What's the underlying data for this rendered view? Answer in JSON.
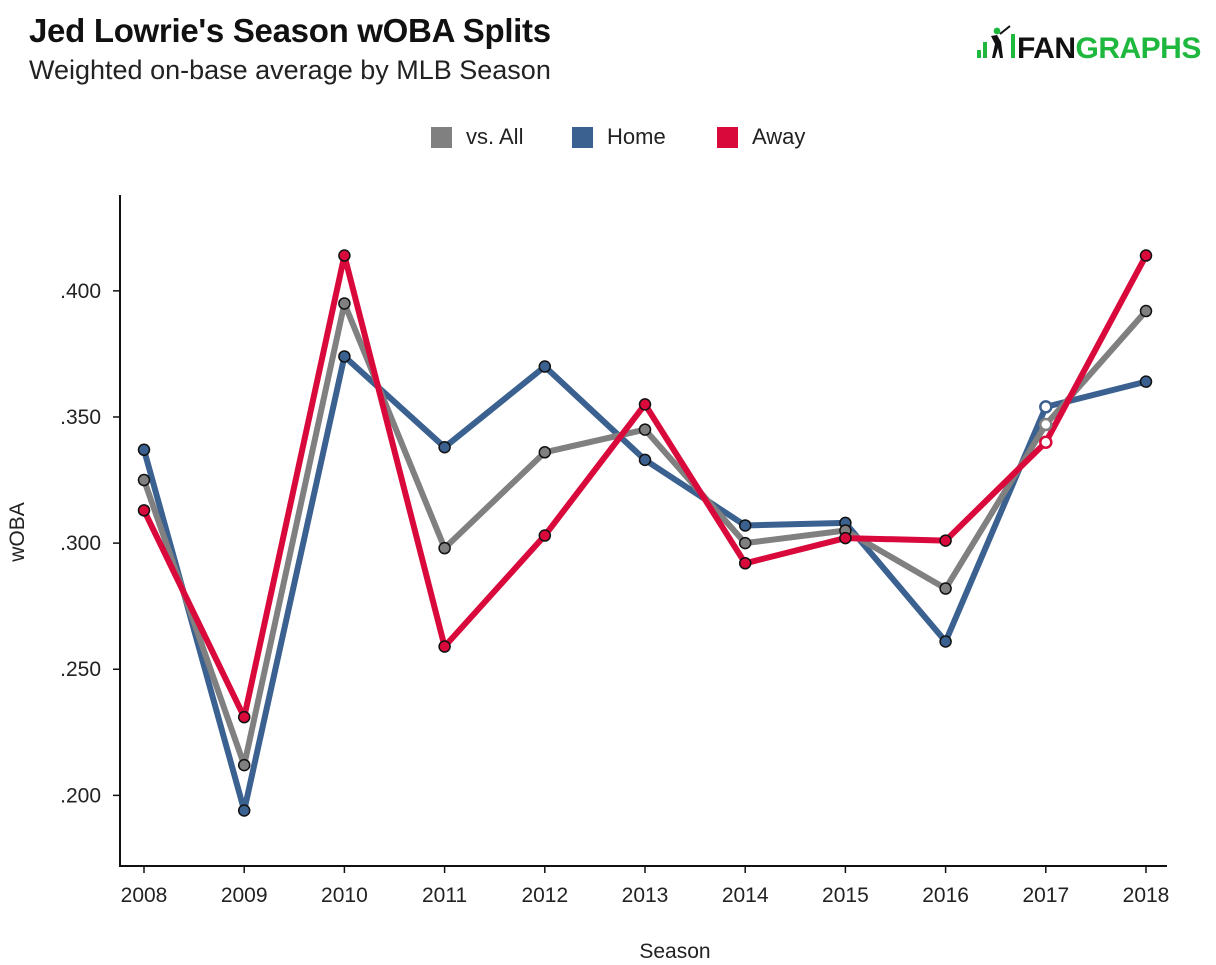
{
  "header": {
    "title": "Jed Lowrie's Season wOBA Splits",
    "subtitle": "Weighted on-base average by MLB Season",
    "logo_text": "FANGRAPHS"
  },
  "colors": {
    "all": "#808080",
    "home": "#3a6190",
    "away": "#d9093c",
    "brand_green": "#1fb83e"
  },
  "chart_data": {
    "type": "line",
    "xlabel": "Season",
    "ylabel": "wOBA",
    "x": [
      2008,
      2009,
      2010,
      2011,
      2012,
      2013,
      2014,
      2015,
      2016,
      2017,
      2018
    ],
    "ylim": [
      0.172,
      0.438
    ],
    "yticks": [
      0.2,
      0.25,
      0.3,
      0.35,
      0.4
    ],
    "ytick_labels": [
      ".200",
      ".250",
      ".300",
      ".350",
      ".400"
    ],
    "legend_position": "top-center",
    "grid": false,
    "series": [
      {
        "name": "vs. All",
        "key": "all",
        "values": [
          0.325,
          0.212,
          0.395,
          0.298,
          0.336,
          0.345,
          0.3,
          0.305,
          0.282,
          0.347,
          0.392
        ]
      },
      {
        "name": "Home",
        "key": "home",
        "values": [
          0.337,
          0.194,
          0.374,
          0.338,
          0.37,
          0.333,
          0.307,
          0.308,
          0.261,
          0.354,
          0.364
        ]
      },
      {
        "name": "Away",
        "key": "away",
        "values": [
          0.313,
          0.231,
          0.414,
          0.259,
          0.303,
          0.355,
          0.292,
          0.302,
          0.301,
          0.34,
          0.414
        ]
      }
    ],
    "hollow_point_index": 9
  }
}
